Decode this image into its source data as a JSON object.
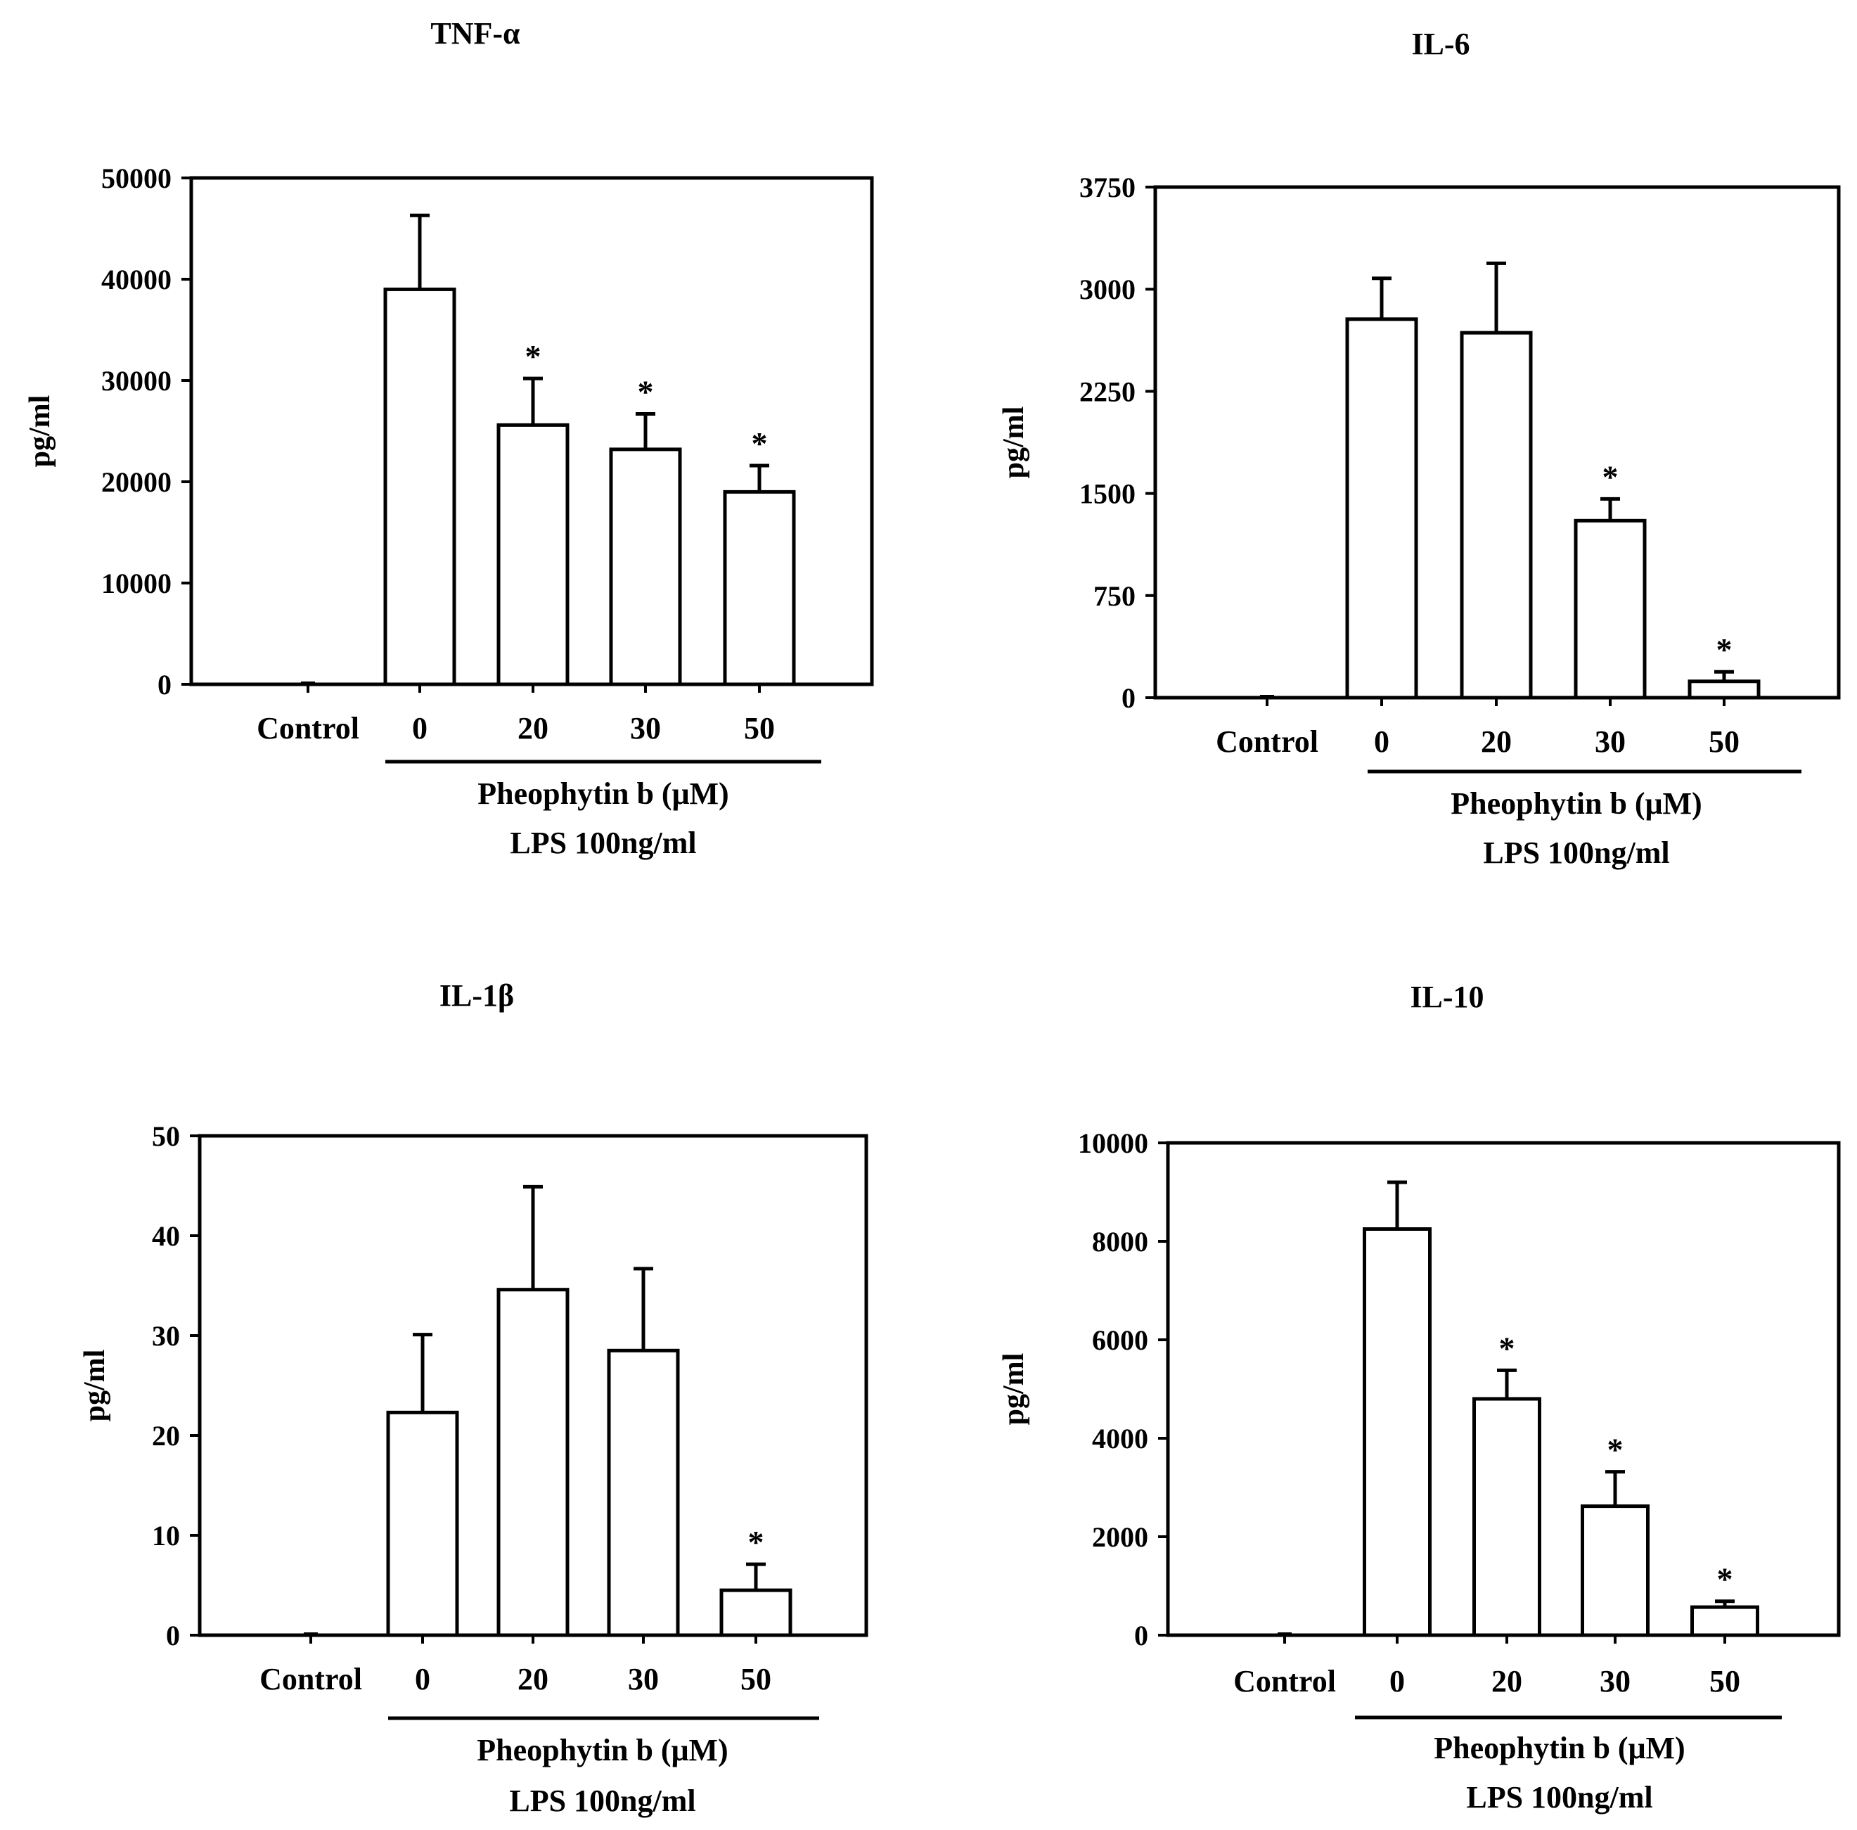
{
  "chart_data": [
    {
      "type": "bar",
      "title": "TNF-α",
      "ylabel": "pg/ml",
      "categories": [
        "Control",
        "0",
        "20",
        "30",
        "50"
      ],
      "values": [
        0,
        39000,
        25600,
        23200,
        19000
      ],
      "errors": [
        0,
        7300,
        4600,
        3500,
        2600
      ],
      "significant": [
        false,
        false,
        true,
        true,
        true
      ],
      "sig_marker": "*",
      "yticks": [
        "0",
        "10000",
        "20000",
        "30000",
        "40000",
        "50000"
      ],
      "ylim": [
        0,
        50000
      ],
      "group_label": "Pheophytin b (μM)",
      "condition_label": "LPS 100ng/ml",
      "grid": false
    },
    {
      "type": "bar",
      "title": "IL-6",
      "ylabel": "pg/ml",
      "categories": [
        "Control",
        "0",
        "20",
        "30",
        "50"
      ],
      "values": [
        0,
        2780,
        2680,
        1300,
        120
      ],
      "errors": [
        0,
        300,
        510,
        160,
        70
      ],
      "significant": [
        false,
        false,
        false,
        true,
        true
      ],
      "sig_marker": "*",
      "yticks": [
        "0",
        "750",
        "1500",
        "2250",
        "3000",
        "3750"
      ],
      "ylim": [
        0,
        3750
      ],
      "group_label": "Pheophytin b (μM)",
      "condition_label": "LPS 100ng/ml",
      "grid": false
    },
    {
      "type": "bar",
      "title": "IL-1β",
      "ylabel": "pg/ml",
      "categories": [
        "Control",
        "0",
        "20",
        "30",
        "50"
      ],
      "values": [
        0,
        22.3,
        34.6,
        28.5,
        4.5
      ],
      "errors": [
        0,
        7.8,
        10.3,
        8.2,
        2.6
      ],
      "significant": [
        false,
        false,
        false,
        false,
        true
      ],
      "sig_marker": "*",
      "yticks": [
        "0",
        "10",
        "20",
        "30",
        "40",
        "50"
      ],
      "ylim": [
        0,
        50
      ],
      "group_label": "Pheophytin b (μM)",
      "condition_label": "LPS 100ng/ml",
      "grid": false
    },
    {
      "type": "bar",
      "title": "IL-10",
      "ylabel": "pg/ml",
      "categories": [
        "Control",
        "0",
        "20",
        "30",
        "50"
      ],
      "values": [
        0,
        8250,
        4800,
        2620,
        570
      ],
      "errors": [
        0,
        950,
        580,
        700,
        120
      ],
      "significant": [
        false,
        false,
        true,
        true,
        true
      ],
      "sig_marker": "*",
      "yticks": [
        "0",
        "2000",
        "4000",
        "6000",
        "8000",
        "10000"
      ],
      "ylim": [
        0,
        10000
      ],
      "group_label": "Pheophytin b (μM)",
      "condition_label": "LPS 100ng/ml",
      "grid": false
    }
  ]
}
